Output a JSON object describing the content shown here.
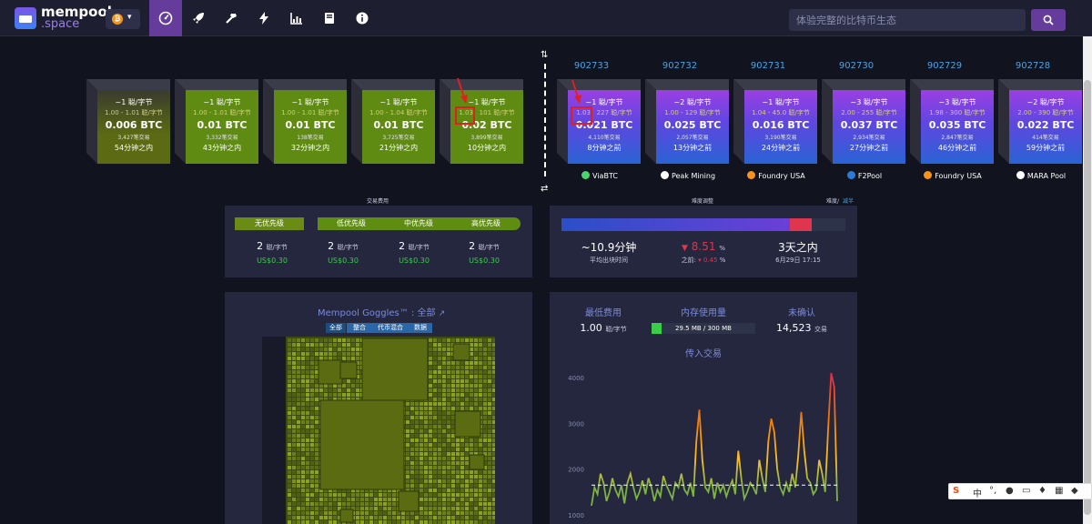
{
  "brand": {
    "name": "mempool",
    "suffix": ".space"
  },
  "search": {
    "placeholder": "体验完整的比特币生态"
  },
  "nav": {
    "icons": [
      "dashboard-icon",
      "rocket-icon",
      "hammer-icon",
      "lightning-icon",
      "chart-icon",
      "book-icon",
      "info-icon"
    ]
  },
  "mempool_blocks": [
    {
      "fee": "~1 聪/字节",
      "range": "1.00 - 1.01 聪/字节",
      "btc": "0.006 BTC",
      "tx": "3,427笔交易",
      "eta": "54分钟之内"
    },
    {
      "fee": "~1 聪/字节",
      "range": "1.00 - 1.01 聪/字节",
      "btc": "0.01 BTC",
      "tx": "3,332笔交易",
      "eta": "43分钟之内"
    },
    {
      "fee": "~1 聪/字节",
      "range": "1.00 - 1.01 聪/字节",
      "btc": "0.01 BTC",
      "tx": "138笔交易",
      "eta": "32分钟之内"
    },
    {
      "fee": "~1 聪/字节",
      "range": "1.00 - 1.04 聪/字节",
      "btc": "0.01 BTC",
      "tx": "3,725笔交易",
      "eta": "21分钟之内"
    },
    {
      "fee": "~1 聪/字节",
      "range_a": "1.03",
      "range": "101 聪/字节",
      "btc": "0.02 BTC",
      "tx": "3,899笔交易",
      "eta": "10分钟之内"
    }
  ],
  "mined_blocks": [
    {
      "height": "902733",
      "fee": "~1 聪/字节",
      "range_a": "1.03",
      "range": "227 聪/字节",
      "btc": "0.021 BTC",
      "tx": "4,110笔交易",
      "ago": "8分钟之前",
      "pool": "ViaBTC"
    },
    {
      "height": "902732",
      "fee": "~2 聪/字节",
      "range": "1.00 - 129 聪/字节",
      "btc": "0.025 BTC",
      "tx": "2,057笔交易",
      "ago": "13分钟之前",
      "pool": "Peak Mining"
    },
    {
      "height": "902731",
      "fee": "~1 聪/字节",
      "range": "1.04 - 45.0 聪/字节",
      "btc": "0.016 BTC",
      "tx": "3,190笔交易",
      "ago": "24分钟之前",
      "pool": "Foundry USA"
    },
    {
      "height": "902730",
      "fee": "~3 聪/字节",
      "range": "2.00 - 255 聪/字节",
      "btc": "0.037 BTC",
      "tx": "2,934笔交易",
      "ago": "27分钟之前",
      "pool": "F2Pool"
    },
    {
      "height": "902729",
      "fee": "~3 聪/字节",
      "range": "1.98 - 300 聪/字节",
      "btc": "0.035 BTC",
      "tx": "2,847笔交易",
      "ago": "46分钟之前",
      "pool": "Foundry USA"
    },
    {
      "height": "902728",
      "fee": "~2 聪/字节",
      "range": "2.00 - 390 聪/字节",
      "btc": "0.022 BTC",
      "tx": "414笔交易",
      "ago": "59分钟之前",
      "pool": "MARA Pool"
    }
  ],
  "fees_card": {
    "title": "交易费用",
    "labels": [
      "无优先级",
      "低优先级",
      "中优先级",
      "高优先级"
    ],
    "values": [
      "2",
      "2",
      "2",
      "2"
    ],
    "unit": "聪/字节",
    "usd": [
      "US$0.30",
      "US$0.30",
      "US$0.30",
      "US$0.30"
    ]
  },
  "difficulty_card": {
    "title": "难度调整",
    "halving_label": "减半",
    "halving_prefix": "难度/",
    "avg_time": "~10.9分钟",
    "avg_time_label": "平均出块时间",
    "change": "8.51",
    "change_unit": "%",
    "prev_label": "之前:",
    "prev_value": "0.45",
    "prev_unit": "%",
    "eta": "3天之内",
    "eta_date": "6月29日 17:15",
    "progress": 0.88,
    "colors": {
      "progress": "#5b3fd8",
      "remaining": "#e0354f"
    }
  },
  "goggles": {
    "title": "Mempool Goggles™ : 全部",
    "tabs": [
      "全部",
      "整合",
      "代币混合",
      "数据"
    ]
  },
  "stats": {
    "min_fee_label": "最低费用",
    "min_fee": "1.00",
    "min_fee_unit": "聪/字节",
    "memory_label": "内存使用量",
    "memory": "29.5 MB / 300 MB",
    "memory_fraction": 0.098,
    "unconfirmed_label": "未确认",
    "unconfirmed": "14,523",
    "unconfirmed_unit": "交易",
    "incoming_label": "传入交易"
  },
  "chart_data": {
    "type": "line",
    "title": "传入交易",
    "ylim": [
      800,
      4300
    ],
    "yticks": [
      "1000",
      "2000",
      "3000",
      "4000"
    ],
    "series": [
      {
        "values": [
          1200,
          1600,
          1450,
          1900,
          1700,
          1300,
          1500,
          1800,
          1550,
          1400,
          1650,
          1250,
          1700,
          1900,
          1600,
          1350,
          1500,
          1750,
          1450,
          1800,
          1600,
          1300,
          1550,
          1400,
          1850,
          1650,
          1500,
          1350,
          1700,
          1600,
          1900,
          1550,
          1450,
          1700,
          1400,
          2600,
          3300,
          2200,
          1600,
          1500,
          1800,
          1350,
          1700,
          1500,
          1650,
          1400,
          1600,
          1750,
          1450,
          2400,
          1800,
          1350,
          1500,
          1700,
          1600,
          1450,
          2200,
          1800,
          1500,
          2600,
          3100,
          2800,
          2000,
          1600,
          1450,
          1700,
          1500,
          1900,
          1600,
          2300,
          3250,
          2400,
          1800,
          1700,
          1450,
          1550,
          2200,
          1900,
          1500,
          2900,
          4100,
          3800,
          1300
        ]
      }
    ],
    "threshold": 1650
  }
}
